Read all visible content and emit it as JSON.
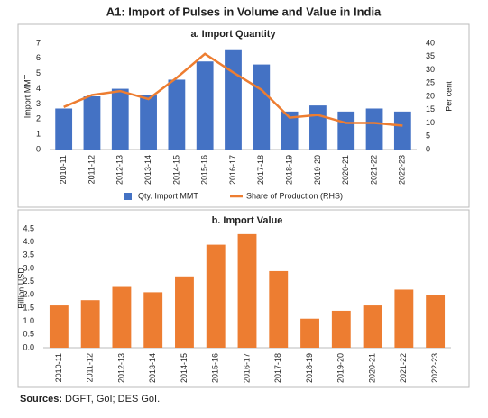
{
  "title": "A1: Import of Pulses in Volume and Value in India",
  "sources": {
    "label": "Sources:",
    "text": "DGFT, GoI; DES GoI."
  },
  "chart_data": [
    {
      "type": "combo",
      "title": "a. Import Quantity",
      "ylabel": "Import MMT",
      "y2label": "Per cent",
      "categories": [
        "2010-11",
        "2011-12",
        "2012-13",
        "2013-14",
        "2014-15",
        "2015-16",
        "2016-17",
        "2017-18",
        "2018-19",
        "2019-20",
        "2020-21",
        "2021-22",
        "2022-23"
      ],
      "series": [
        {
          "name": "Qty. Import MMT",
          "type": "bar",
          "color": "#4472c4",
          "values": [
            2.7,
            3.5,
            4.0,
            3.6,
            4.6,
            5.8,
            6.6,
            5.6,
            2.5,
            2.9,
            2.5,
            2.7,
            2.5
          ]
        },
        {
          "name": "Share of Production (RHS)",
          "type": "line",
          "axis": "y2",
          "color": "#ed7d31",
          "values": [
            16,
            20.5,
            22,
            19,
            27,
            36,
            29,
            22.5,
            12,
            13,
            10,
            10,
            9
          ]
        }
      ],
      "ylim": [
        0,
        7
      ],
      "yticks": [
        0,
        1,
        2,
        3,
        4,
        5,
        6,
        7
      ],
      "y2lim": [
        0,
        40
      ],
      "y2ticks": [
        0,
        5,
        10,
        15,
        20,
        25,
        30,
        35,
        40
      ],
      "grid": false,
      "legend": "bottom"
    },
    {
      "type": "bar",
      "title": "b. Import Value",
      "ylabel": "Billion USD",
      "categories": [
        "2010-11",
        "2011-12",
        "2012-13",
        "2013-14",
        "2014-15",
        "2015-16",
        "2016-17",
        "2017-18",
        "2018-19",
        "2019-20",
        "2020-21",
        "2021-22",
        "2022-23"
      ],
      "values": [
        1.6,
        1.8,
        2.3,
        2.1,
        2.7,
        3.9,
        4.3,
        2.9,
        1.1,
        1.4,
        1.6,
        2.2,
        2.0
      ],
      "color": "#ed7d31",
      "ylim": [
        0,
        4.5
      ],
      "yticks": [
        {
          "value": 0,
          "label": "0.0"
        },
        0.5,
        {
          "value": 1,
          "label": "1.0"
        },
        1.5,
        {
          "value": 2,
          "label": "2.0"
        },
        2.5,
        {
          "value": 3,
          "label": "3.0"
        },
        3.5,
        {
          "value": 4,
          "label": "4.0"
        },
        4.5
      ],
      "grid": false
    }
  ]
}
